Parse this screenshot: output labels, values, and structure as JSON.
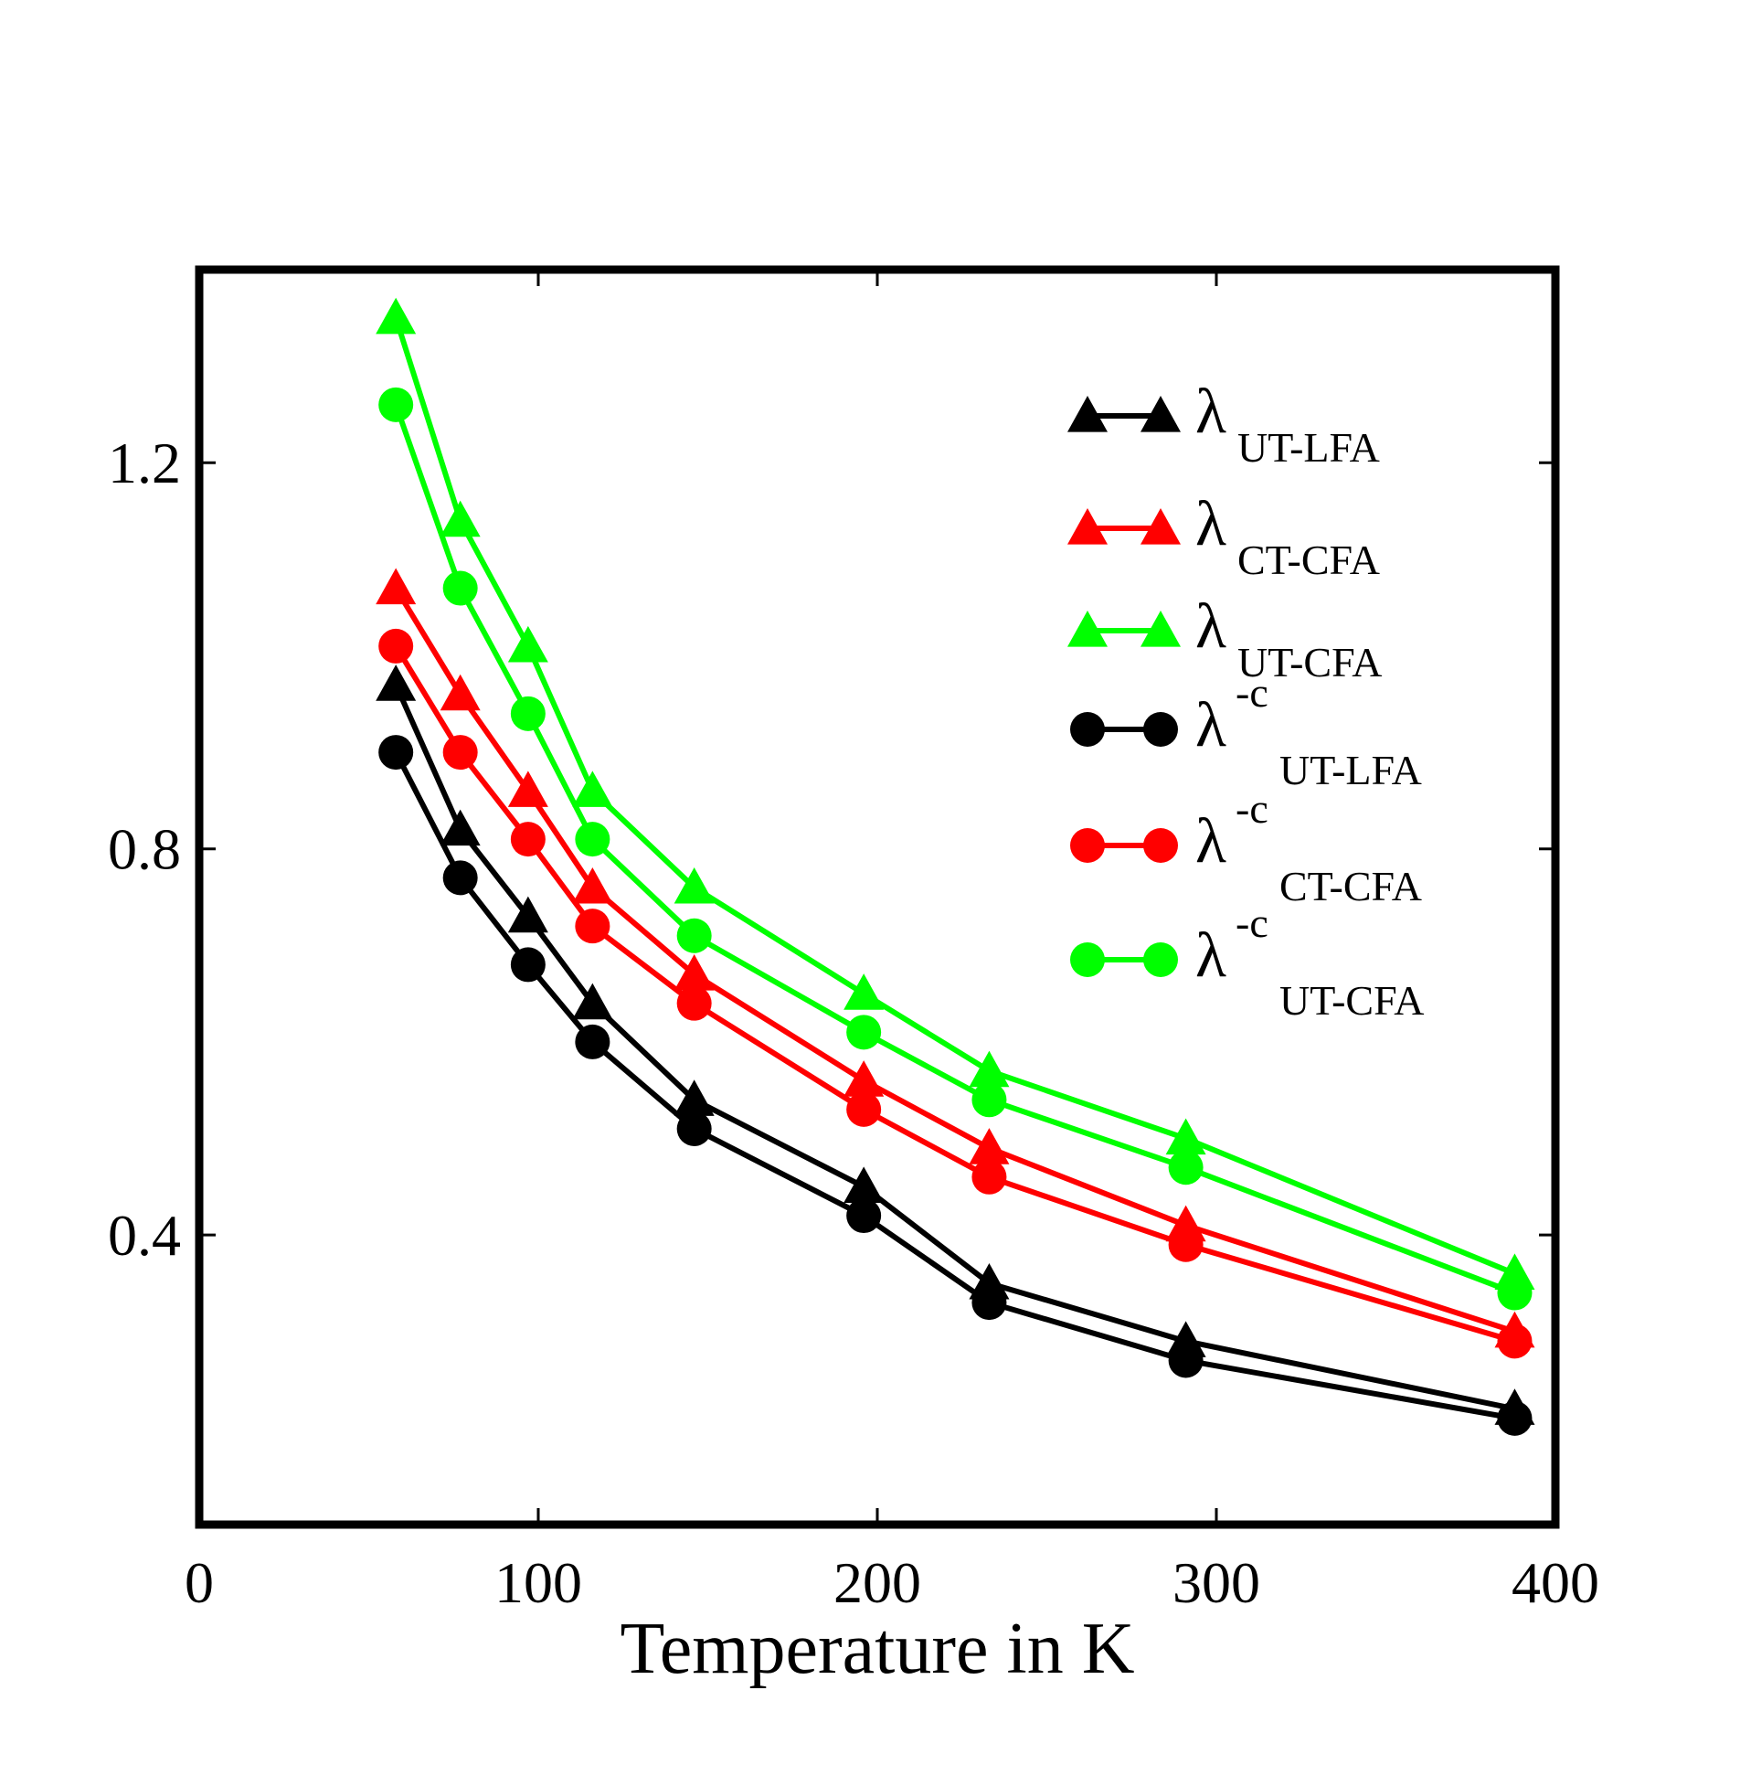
{
  "chart_data": {
    "type": "line",
    "title": "",
    "xlabel": "Temperature in K",
    "ylabel": "",
    "xlim": [
      0,
      400
    ],
    "ylim": [
      0.1,
      1.4
    ],
    "xticks": [
      0,
      100,
      200,
      300,
      400
    ],
    "xtick_labels": [
      "0",
      "100",
      "200",
      "300",
      "400"
    ],
    "yticks": [
      0.4,
      0.8,
      1.2
    ],
    "ytick_labels": [
      "0.4",
      "0.8",
      "1.2"
    ],
    "grid": false,
    "legend_position": "top-right",
    "x": [
      58,
      77,
      97,
      116,
      146,
      196,
      233,
      291,
      388
    ],
    "series": [
      {
        "name": "λ_UT-LFA",
        "symbol": "λ",
        "sup": "",
        "sub": "UT-LFA",
        "marker": "triangle",
        "color": "#000000",
        "values": [
          0.97,
          0.82,
          0.73,
          0.64,
          0.54,
          0.45,
          0.35,
          0.29,
          0.22
        ]
      },
      {
        "name": "λ_CT-CFA",
        "symbol": "λ",
        "sup": "",
        "sub": "CT-CFA",
        "marker": "triangle",
        "color": "#ff0000",
        "values": [
          1.07,
          0.96,
          0.86,
          0.76,
          0.67,
          0.56,
          0.49,
          0.41,
          0.3
        ]
      },
      {
        "name": "λ_UT-CFA",
        "symbol": "λ",
        "sup": "",
        "sub": "UT-CFA",
        "marker": "triangle",
        "color": "#00ff00",
        "values": [
          1.35,
          1.14,
          1.01,
          0.86,
          0.76,
          0.65,
          0.57,
          0.5,
          0.36
        ]
      },
      {
        "name": "λ^-c_UT-LFA",
        "symbol": "λ",
        "sup": "-c",
        "sub": "UT-LFA",
        "marker": "circle",
        "color": "#000000",
        "values": [
          0.9,
          0.77,
          0.68,
          0.6,
          0.51,
          0.42,
          0.33,
          0.27,
          0.21
        ]
      },
      {
        "name": "λ^-c_CT-CFA",
        "symbol": "λ",
        "sup": "-c",
        "sub": "CT-CFA",
        "marker": "circle",
        "color": "#ff0000",
        "values": [
          1.01,
          0.9,
          0.81,
          0.72,
          0.64,
          0.53,
          0.46,
          0.39,
          0.29
        ]
      },
      {
        "name": "λ^-c_UT-CFA",
        "symbol": "λ",
        "sup": "-c",
        "sub": "UT-CFA",
        "marker": "circle",
        "color": "#00ff00",
        "values": [
          1.26,
          1.07,
          0.94,
          0.81,
          0.71,
          0.61,
          0.54,
          0.47,
          0.34
        ]
      }
    ]
  }
}
